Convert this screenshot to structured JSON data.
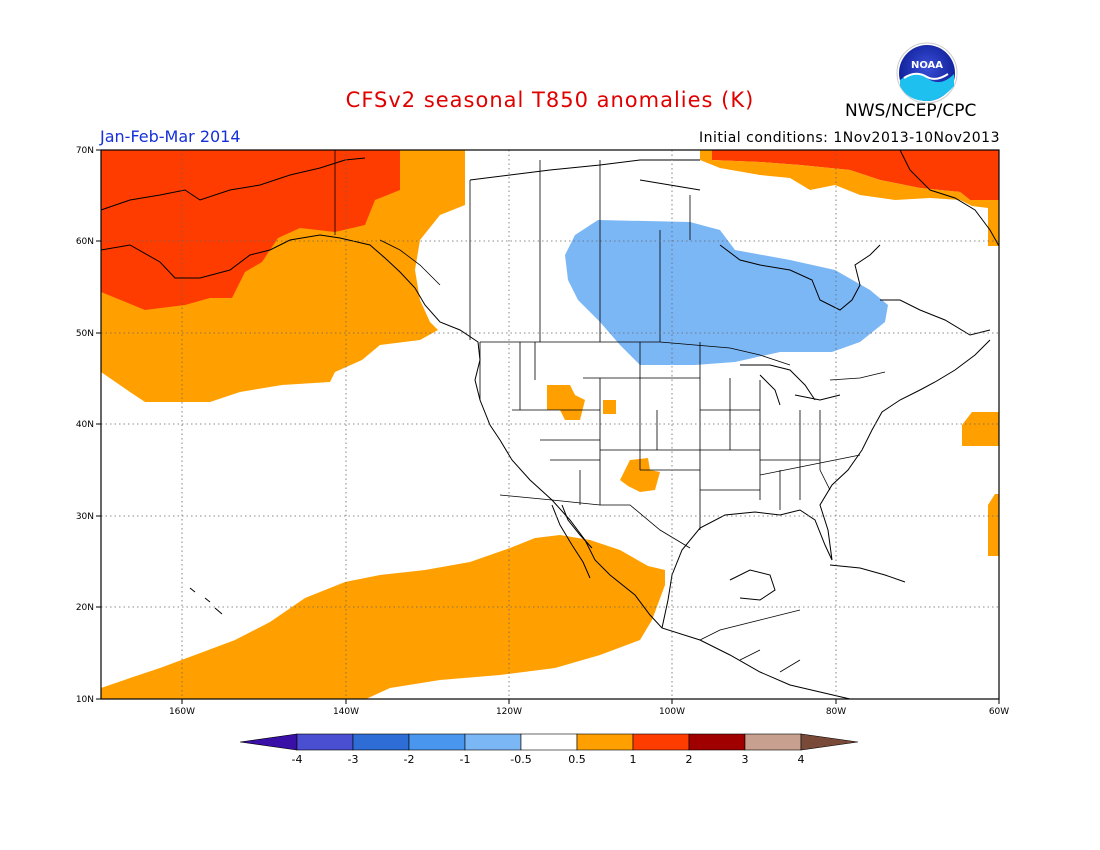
{
  "header": {
    "title": "CFSv2 seasonal T850 anomalies (K)",
    "org": "NWS/NCEP/CPC",
    "period": "Jan-Feb-Mar 2014",
    "initial_conditions": "Initial conditions: 1Nov2013-10Nov2013"
  },
  "logo": {
    "text": "NOAA",
    "icon": "noaa-logo-icon"
  },
  "map": {
    "lon_labels": [
      "160W",
      "140W",
      "120W",
      "100W",
      "80W",
      "60W"
    ],
    "lat_labels": [
      "70N",
      "60N",
      "50N",
      "40N",
      "30N",
      "20N",
      "10N"
    ],
    "extent": {
      "lon": [
        -170,
        -60
      ],
      "lat": [
        10,
        70
      ]
    }
  },
  "colorbar": {
    "labels": [
      "-4",
      "-3",
      "-2",
      "-1",
      "-0.5",
      "0.5",
      "1",
      "2",
      "3",
      "4"
    ],
    "colors": [
      "#3a0fa8",
      "#4a4ed0",
      "#2e6cd6",
      "#4996ee",
      "#7cb7f5",
      "#ffffff",
      "#ffa000",
      "#ff3c00",
      "#a00000",
      "#c8a090",
      "#7a4a38"
    ]
  }
}
